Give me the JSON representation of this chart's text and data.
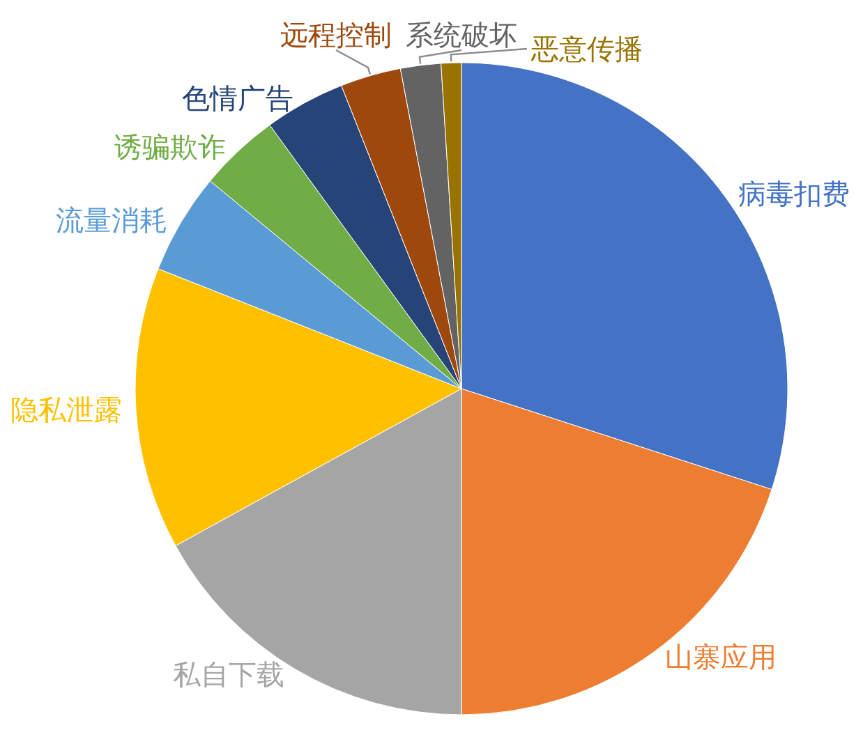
{
  "chart_data": {
    "type": "pie",
    "categories": [
      "病毒扣费",
      "山寨应用",
      "私自下载",
      "隐私泄露",
      "流量消耗",
      "诱骗欺诈",
      "色情广告",
      "远程控制",
      "系统破坏",
      "恶意传播"
    ],
    "values": [
      30,
      20,
      17,
      14,
      5,
      4,
      4,
      3,
      2,
      1
    ],
    "colors": [
      "#4472c4",
      "#ed7d31",
      "#a5a5a5",
      "#ffc000",
      "#5b9bd5",
      "#70ad47",
      "#264478",
      "#9e480e",
      "#636363",
      "#997300"
    ]
  }
}
